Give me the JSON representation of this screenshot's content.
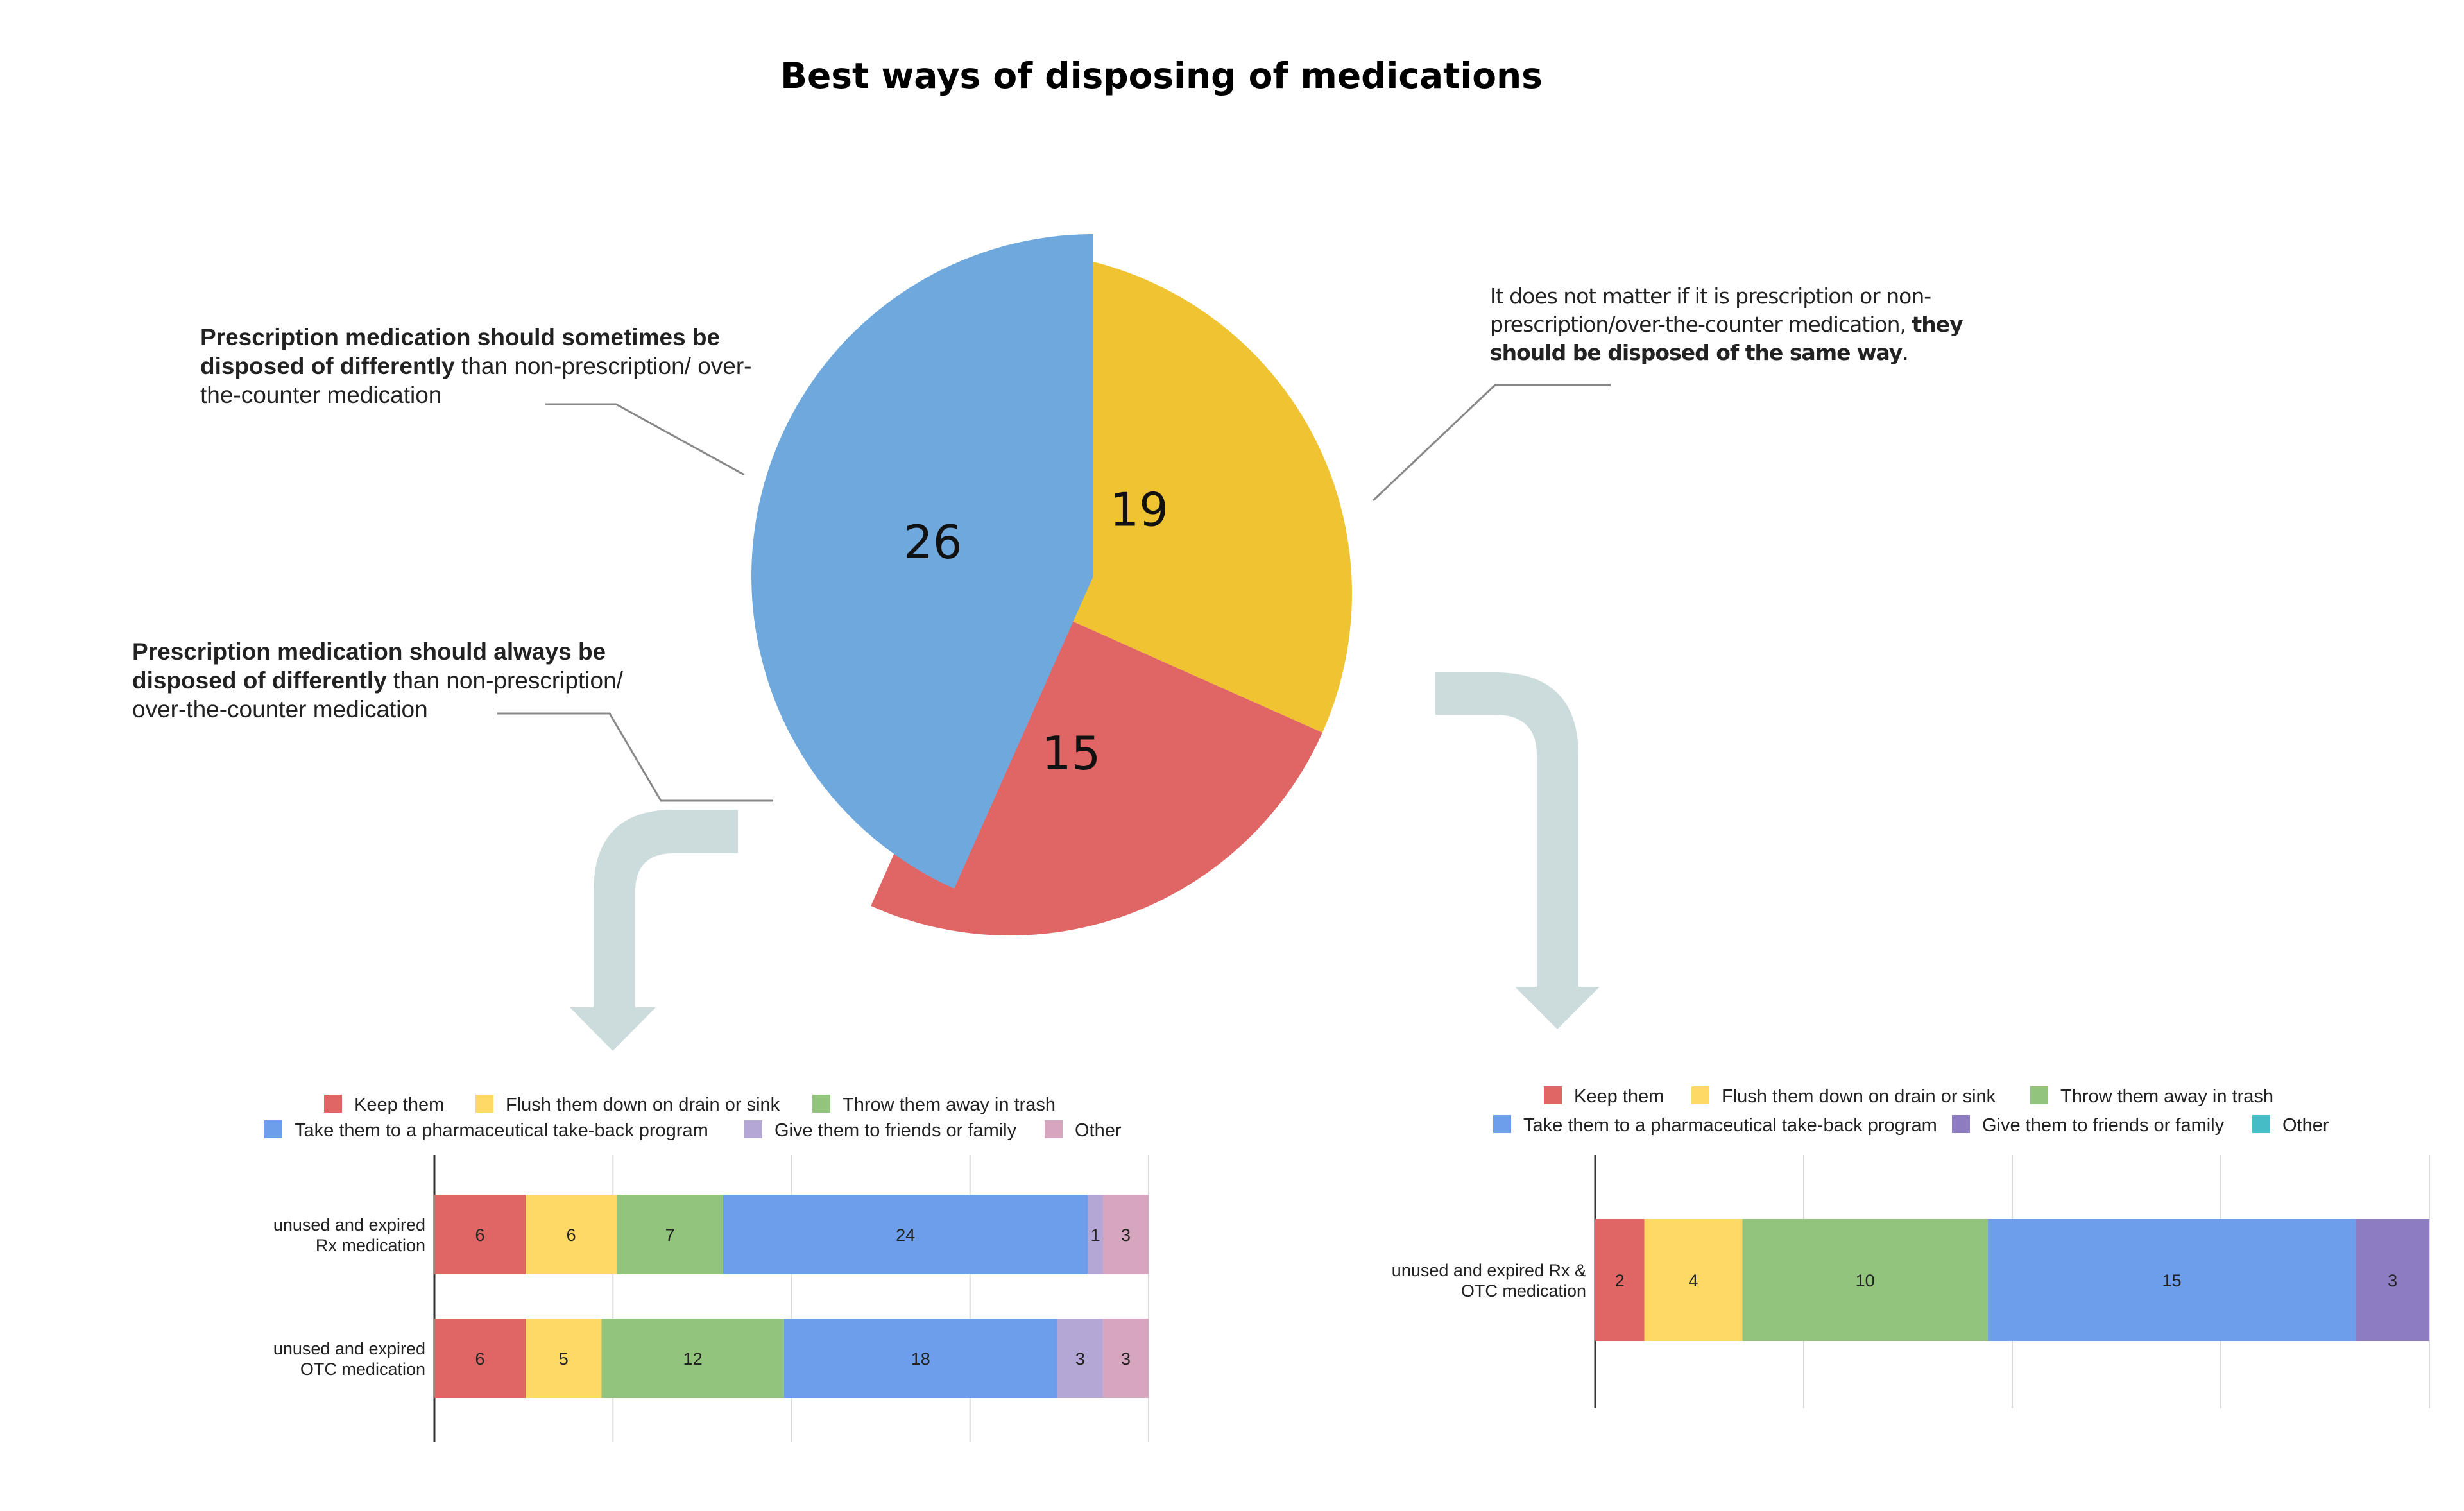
{
  "title": "Best ways of disposing of medications",
  "annotations": {
    "sometimes": {
      "bold": "Prescription medication should sometimes be disposed of differently",
      "rest": " than non-prescription/ over-the-counter medication"
    },
    "always": {
      "bold": "Prescription medication should always be disposed of differently",
      "rest": " than non-prescription/ over-the-counter medication"
    },
    "same": {
      "rest": "It does not matter if it is prescription or non-prescription/over-the-counter medication, ",
      "bold": "they should be disposed of the same way",
      "end": "."
    }
  },
  "chart_data": [
    {
      "type": "pie",
      "title": "Best ways of disposing of medications",
      "slices": [
        {
          "name": "Prescription medication should sometimes be disposed of differently than non-prescription/ over-the-counter medication",
          "value": 19,
          "color": "#F0C332"
        },
        {
          "name": "Prescription medication should always be disposed of differently than non-prescription/ over-the-counter medication",
          "value": 15,
          "color": "#E06666"
        },
        {
          "name": "It does not matter if it is prescription or non-prescription/over-the-counter medication, they should be disposed of the same way.",
          "value": 26,
          "color": "#6FA8DC"
        }
      ]
    },
    {
      "type": "bar",
      "orientation": "horizontal",
      "stacked": true,
      "legend_position": "top",
      "categories": [
        "unused and expired Rx medication",
        "unused and expired OTC medication"
      ],
      "category_lines": [
        [
          "unused and expired",
          "Rx medication"
        ],
        [
          "unused and expired",
          "OTC medication"
        ]
      ],
      "series": [
        {
          "name": "Keep them",
          "color": "#E06666",
          "values": [
            6,
            6
          ]
        },
        {
          "name": "Flush them down on drain or sink",
          "color": "#FFD966",
          "values": [
            6,
            5
          ]
        },
        {
          "name": "Throw them away in trash",
          "color": "#93C47D",
          "values": [
            7,
            12
          ]
        },
        {
          "name": "Take them to a pharmaceutical take-back program",
          "color": "#6D9EEB",
          "values": [
            24,
            18
          ]
        },
        {
          "name": "Give them to friends or family",
          "color": "#B4A7D6",
          "values": [
            1,
            3
          ]
        },
        {
          "name": "Other",
          "color": "#D5A6BD",
          "values": [
            3,
            3
          ]
        }
      ]
    },
    {
      "type": "bar",
      "orientation": "horizontal",
      "stacked": true,
      "legend_position": "top",
      "categories": [
        "unused and expired Rx & OTC medication"
      ],
      "category_lines": [
        [
          "unused and expired Rx &",
          "OTC medication"
        ]
      ],
      "series": [
        {
          "name": "Keep them",
          "color": "#E06666",
          "values": [
            2
          ]
        },
        {
          "name": "Flush them down on drain or sink",
          "color": "#FFD966",
          "values": [
            4
          ]
        },
        {
          "name": "Throw them away in trash",
          "color": "#93C47D",
          "values": [
            10
          ]
        },
        {
          "name": "Take them to a pharmaceutical take-back program",
          "color": "#6D9EEB",
          "values": [
            15
          ]
        },
        {
          "name": "Give them to friends or family",
          "color": "#8E7CC3",
          "values": [
            3
          ]
        },
        {
          "name": "Other",
          "color": "#46BDC6",
          "values": [
            0
          ]
        }
      ]
    }
  ]
}
